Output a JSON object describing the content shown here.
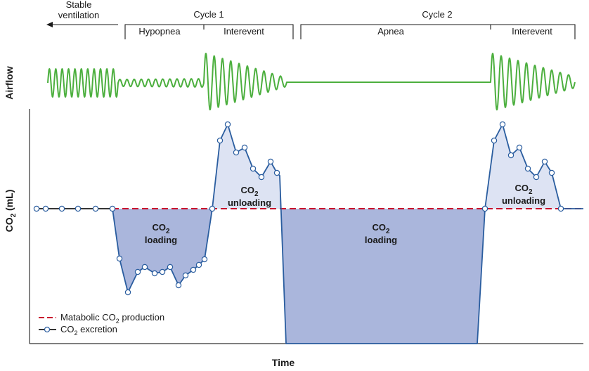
{
  "header": {
    "stable_line1": "Stable",
    "stable_line2": "ventilation",
    "cycle1": "Cycle  1",
    "cycle2": "Cycle  2",
    "phase_hypopnea": "Hypopnea",
    "phase_interevent1": "Interevent",
    "phase_apnea": "Apnea",
    "phase_interevent2": "Interevent"
  },
  "axes": {
    "airflow": "Airflow",
    "co2_main": "CO",
    "co2_sub": "2",
    "co2_unit": " (mL)",
    "time": "Time"
  },
  "regions": {
    "co2_sym": "CO",
    "co2_sub": "2",
    "loading": "loading",
    "unloading": "unloading"
  },
  "legend": {
    "production_pre": "Matabolic CO",
    "production_sub": "2",
    "production_post": " production",
    "excretion_pre": "CO",
    "excretion_sub": "2",
    "excretion_post": " excretion"
  },
  "colors": {
    "airflow": "#4caf3e",
    "excretion_line": "#2a5d9f",
    "production_line": "#c8102e",
    "loading_fill": "#aab6dc",
    "unloading_fill": "#dde3f3",
    "axis": "#333333"
  }
}
